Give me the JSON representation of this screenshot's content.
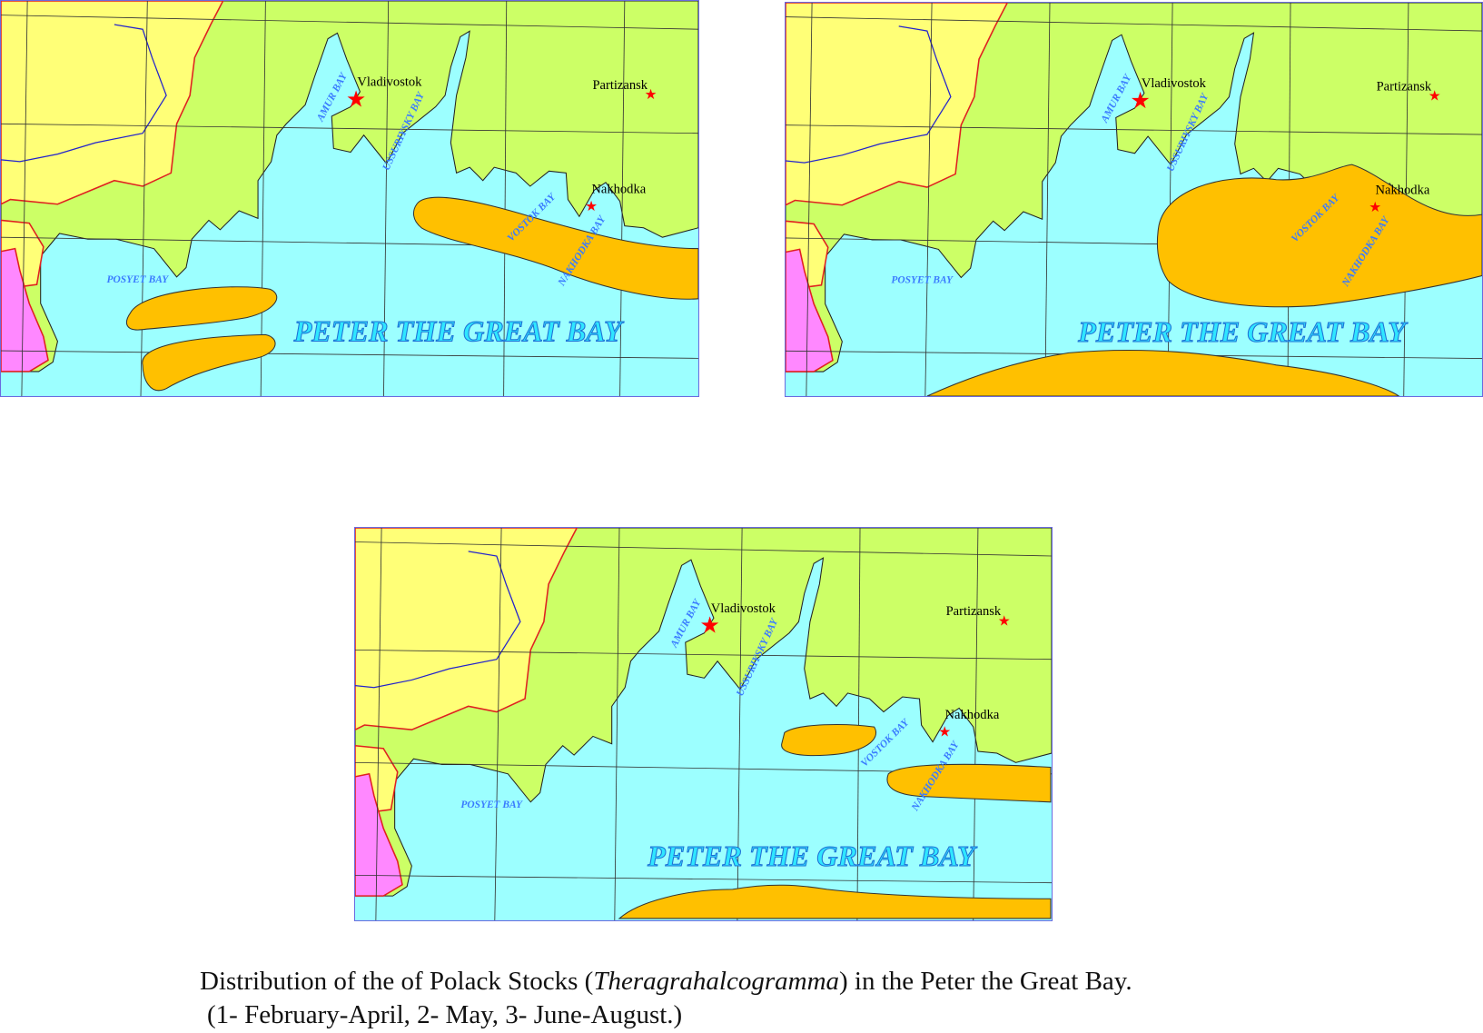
{
  "maps": [
    {
      "panel": "1",
      "labels": {
        "city1": "Vladivostok",
        "city2": "Partizansk",
        "city3": "Nakhodka",
        "bay1": "AMUR BAY",
        "bay2": "USSURIYSKY BAY",
        "bay3": "VOSTOK BAY",
        "bay4": "NAKHODKA BAY",
        "bay5": "POSYET BAY",
        "sea": "PETER THE GREAT BAY"
      }
    },
    {
      "panel": "2",
      "labels": {
        "city1": "Vladivostok",
        "city2": "Partizansk",
        "city3": "Nakhodka",
        "bay1": "AMUR BAY",
        "bay2": "USSURIYSKY BAY",
        "bay3": "VOSTOK BAY",
        "bay4": "NAKHODKA BAY",
        "bay5": "POSYET BAY",
        "sea": "PETER THE GREAT BAY"
      }
    },
    {
      "panel": "3",
      "labels": {
        "city1": "Vladivostok",
        "city2": "Partizansk",
        "city3": "Nakhodka",
        "bay1": "AMUR BAY",
        "bay2": "USSURIYSKY BAY",
        "bay3": "VOSTOK BAY",
        "bay4": "NAKHODKA BAY",
        "bay5": "POSYET BAY",
        "sea": "PETER THE GREAT BAY"
      }
    }
  ],
  "colors": {
    "sea": "#9cffff",
    "land": "#ccff66",
    "neighbor_yellow": "#ffff77",
    "neighbor_pink": "#ff88ff",
    "stock": "#ffc000",
    "border": "#e02020",
    "river": "#2222cc",
    "city": "#ff0000"
  },
  "caption": {
    "line1_pre": "Distribution of the  of Polack Stocks (",
    "line1_species": "Theragrahalcogramma",
    "line1_post": ") in the Peter the Great Bay.",
    "line2": "(1- February-April, 2- May, 3- June-August.)"
  }
}
